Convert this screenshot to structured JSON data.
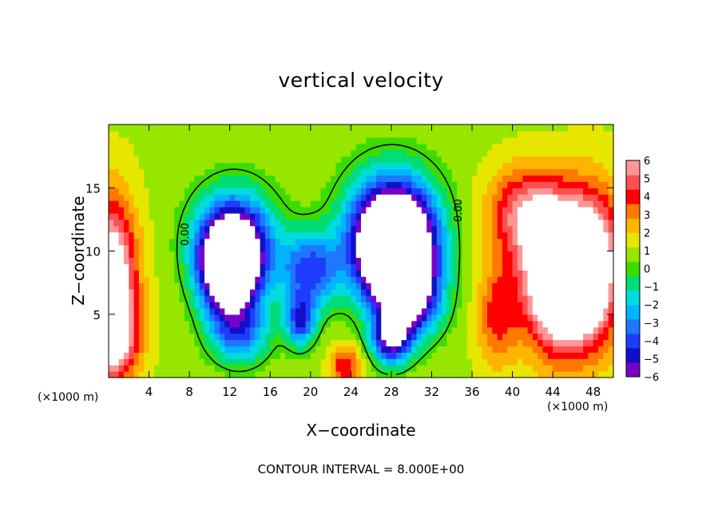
{
  "chart_data": {
    "type": "heatmap",
    "title": "vertical velocity",
    "xlabel": "X−coordinate",
    "ylabel": "Z−coordinate",
    "x_unit_label": "(×1000 m)",
    "x_range": [
      0,
      50
    ],
    "z_range": [
      0,
      20
    ],
    "x_ticks": [
      4,
      8,
      12,
      16,
      20,
      24,
      28,
      32,
      36,
      40,
      44,
      48
    ],
    "z_ticks": [
      5,
      10,
      15
    ],
    "footnote": "CONTOUR INTERVAL = 8.000E+00",
    "contour_label": "0.00",
    "grid": false,
    "colorbar": {
      "ticks": [
        6,
        5,
        4,
        3,
        2,
        1,
        0,
        "−1",
        "−2",
        "−3",
        "−4",
        "−5",
        "−6"
      ],
      "range": [
        -6,
        6
      ],
      "colors": [
        "#7a00c8",
        "#1010c8",
        "#1e3cff",
        "#1e78ff",
        "#00b4ff",
        "#00dcdc",
        "#00dc78",
        "#3cdc00",
        "#96e600",
        "#e6e600",
        "#ffb400",
        "#ff7800",
        "#ff0000",
        "#ff5050",
        "#ff9696"
      ]
    },
    "field_features": [
      {
        "x": 0,
        "z": 7,
        "amp": 8.5,
        "sx": 2.6,
        "sz": 6.5
      },
      {
        "x": 0.5,
        "z": 3,
        "amp": 3,
        "sx": 2.5,
        "sz": 2.5
      },
      {
        "x": 45,
        "z": 8.2,
        "amp": 12,
        "sx": 3.6,
        "sz": 5.5
      },
      {
        "x": 41,
        "z": 13,
        "amp": 4,
        "sx": 3.5,
        "sz": 3.5
      },
      {
        "x": 48.5,
        "z": 9,
        "amp": 4,
        "sx": 2.5,
        "sz": 6
      },
      {
        "x": 38.5,
        "z": 5,
        "amp": 3,
        "sx": 2,
        "sz": 4
      },
      {
        "x": 23.5,
        "z": 1,
        "amp": 3.5,
        "sx": 1.5,
        "sz": 1.5
      },
      {
        "x": 12,
        "z": 8.5,
        "amp": -11,
        "sx": 2.8,
        "sz": 3.5
      },
      {
        "x": 12.5,
        "z": 11,
        "amp": -6,
        "sx": 4,
        "sz": 4
      },
      {
        "x": 28.5,
        "z": 9.5,
        "amp": -11,
        "sx": 3.5,
        "sz": 4
      },
      {
        "x": 28,
        "z": 12,
        "amp": -7,
        "sx": 4.5,
        "sz": 4.5
      },
      {
        "x": 20,
        "z": 8.5,
        "amp": -5,
        "sx": 3,
        "sz": 3
      },
      {
        "x": 19,
        "z": 4.5,
        "amp": -5,
        "sx": 1.5,
        "sz": 2
      },
      {
        "x": 28,
        "z": 3,
        "amp": -6,
        "sx": 2,
        "sz": 2
      },
      {
        "x": 13,
        "z": 3.5,
        "amp": -4,
        "sx": 3,
        "sz": 2.5
      },
      {
        "x": 30,
        "z": 6,
        "amp": -5,
        "sx": 3,
        "sz": 3
      }
    ]
  }
}
